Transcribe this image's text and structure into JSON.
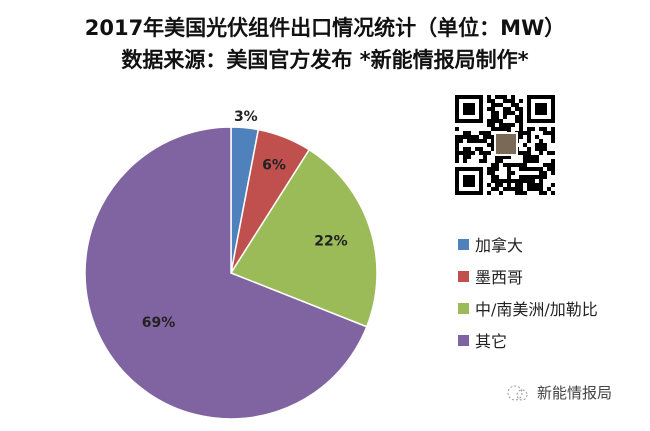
{
  "chart_data": {
    "type": "pie",
    "title": "2017年美国光伏组件出口情况统计（单位：MW）",
    "subtitle": "数据来源：美国官方发布 *新能情报局制作*",
    "categories": [
      "加拿大",
      "墨西哥",
      "中/南美洲/加勒比",
      "其它"
    ],
    "values": [
      3,
      6,
      22,
      69
    ],
    "labels": [
      "3%",
      "6%",
      "22%",
      "69%"
    ],
    "colors": [
      "#4F81BD",
      "#C0504D",
      "#9BBB59",
      "#8064A2"
    ],
    "legend_position": "right"
  },
  "watermark": "新能情报局",
  "watermark_icon": "wechat-icon",
  "qr_icon": "qr-code"
}
